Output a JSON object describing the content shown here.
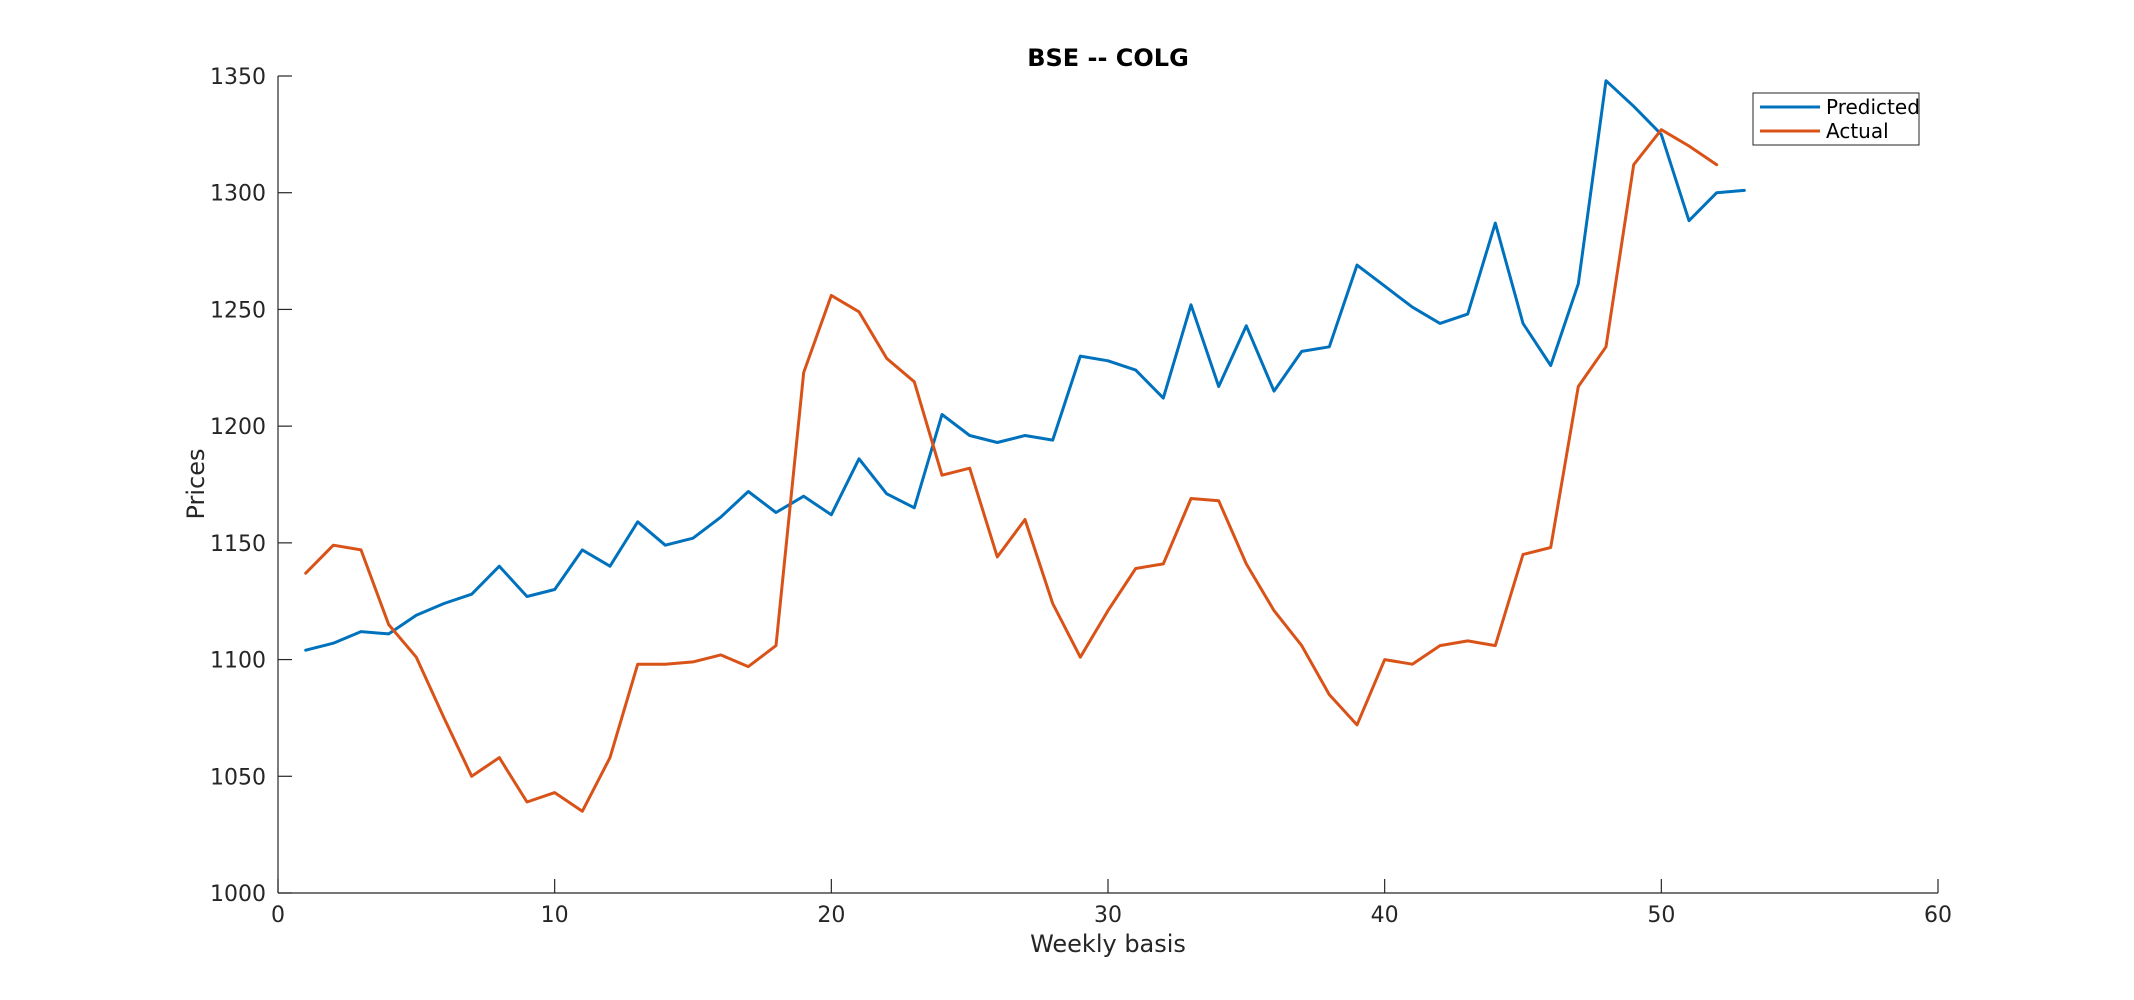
{
  "chart_data": {
    "type": "line",
    "title": "BSE -- COLG",
    "xlabel": "Weekly basis",
    "ylabel": "Prices",
    "xlim": [
      0,
      60
    ],
    "ylim": [
      1000,
      1350
    ],
    "xticks": [
      0,
      10,
      20,
      30,
      40,
      50,
      60
    ],
    "yticks": [
      1000,
      1050,
      1100,
      1150,
      1200,
      1250,
      1300,
      1350
    ],
    "grid": false,
    "legend_position": "top-right",
    "series": [
      {
        "name": "Predicted",
        "color": "#0072BD",
        "x": [
          1,
          2,
          3,
          4,
          5,
          6,
          7,
          8,
          9,
          10,
          11,
          12,
          13,
          14,
          15,
          16,
          17,
          18,
          19,
          20,
          21,
          22,
          23,
          24,
          25,
          26,
          27,
          28,
          29,
          30,
          31,
          32,
          33,
          34,
          35,
          36,
          37,
          38,
          39,
          40,
          41,
          42,
          43,
          44,
          45,
          46,
          47,
          48,
          49,
          50,
          51,
          52,
          53
        ],
        "values": [
          1104,
          1107,
          1112,
          1111,
          1119,
          1124,
          1128,
          1140,
          1127,
          1130,
          1147,
          1140,
          1159,
          1149,
          1152,
          1161,
          1172,
          1163,
          1170,
          1162,
          1186,
          1171,
          1165,
          1205,
          1196,
          1193,
          1196,
          1194,
          1230,
          1228,
          1224,
          1212,
          1252,
          1217,
          1243,
          1215,
          1232,
          1234,
          1269,
          1260,
          1251,
          1244,
          1248,
          1287,
          1244,
          1226,
          1261,
          1348,
          1337,
          1325,
          1288,
          1300,
          1301
        ]
      },
      {
        "name": "Actual",
        "color": "#D95319",
        "x": [
          1,
          2,
          3,
          4,
          5,
          6,
          7,
          8,
          9,
          10,
          11,
          12,
          13,
          14,
          15,
          16,
          17,
          18,
          19,
          20,
          21,
          22,
          23,
          24,
          25,
          26,
          27,
          28,
          29,
          30,
          31,
          32,
          33,
          34,
          35,
          36,
          37,
          38,
          39,
          40,
          41,
          42,
          43,
          44,
          45,
          46,
          47,
          48,
          49,
          50,
          51,
          52
        ],
        "values": [
          1137,
          1149,
          1147,
          1115,
          1101,
          1075,
          1050,
          1058,
          1039,
          1043,
          1035,
          1058,
          1098,
          1098,
          1099,
          1102,
          1097,
          1106,
          1223,
          1256,
          1249,
          1229,
          1219,
          1179,
          1182,
          1144,
          1160,
          1124,
          1101,
          1121,
          1139,
          1141,
          1169,
          1168,
          1141,
          1121,
          1106,
          1085,
          1072,
          1100,
          1098,
          1106,
          1108,
          1106,
          1145,
          1148,
          1217,
          1234,
          1312,
          1327,
          1320,
          1312
        ]
      }
    ]
  }
}
